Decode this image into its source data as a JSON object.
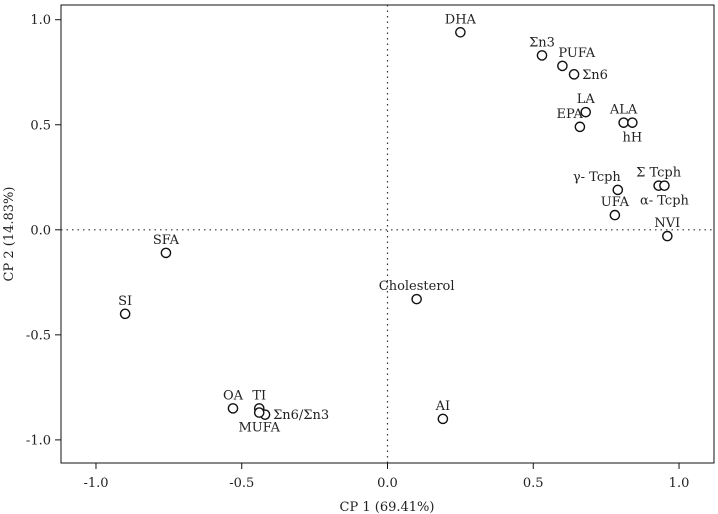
{
  "chart_data": {
    "type": "scatter",
    "xlabel": "CP 1 (69.41%)",
    "ylabel": "CP 2 (14.83%)",
    "xlim": [
      -1.12,
      1.12
    ],
    "ylim": [
      -1.11,
      1.07
    ],
    "x_ticks": [
      -1.0,
      -0.5,
      0.0,
      0.5,
      1.0
    ],
    "x_tick_labels": [
      "-1.0",
      "-0.5",
      "0.0",
      "0.5",
      "1.0"
    ],
    "y_ticks": [
      -1.0,
      -0.5,
      0.0,
      0.5,
      1.0
    ],
    "y_tick_labels": [
      "-1.0",
      "-0.5",
      "0.0",
      "0.5",
      "1.0"
    ],
    "reference_lines": {
      "x": 0,
      "y": 0,
      "style": "dotted"
    },
    "grid": false,
    "points": [
      {
        "label": "DHA",
        "x": 0.25,
        "y": 0.94,
        "label_pos": "above"
      },
      {
        "label": "Σn3",
        "x": 0.53,
        "y": 0.83,
        "label_pos": "above"
      },
      {
        "label": "PUFA",
        "x": 0.6,
        "y": 0.78,
        "label_pos": "above-right"
      },
      {
        "label": "Σn6",
        "x": 0.64,
        "y": 0.74,
        "label_pos": "right"
      },
      {
        "label": "LA",
        "x": 0.68,
        "y": 0.56,
        "label_pos": "above"
      },
      {
        "label": "ALA",
        "x": 0.81,
        "y": 0.51,
        "label_pos": "above"
      },
      {
        "label": "hH",
        "x": 0.84,
        "y": 0.51,
        "label_pos": "below"
      },
      {
        "label": "EPA",
        "x": 0.66,
        "y": 0.49,
        "label_pos": "above-left"
      },
      {
        "label": "γ- Tcph",
        "x": 0.79,
        "y": 0.19,
        "label_pos": "above-left"
      },
      {
        "label": "Σ Tcph",
        "x": 0.93,
        "y": 0.21,
        "label_pos": "above"
      },
      {
        "label": "α- Tcph",
        "x": 0.95,
        "y": 0.21,
        "label_pos": "below"
      },
      {
        "label": "UFA",
        "x": 0.78,
        "y": 0.07,
        "label_pos": "above"
      },
      {
        "label": "NVI",
        "x": 0.96,
        "y": -0.03,
        "label_pos": "above"
      },
      {
        "label": "SFA",
        "x": -0.76,
        "y": -0.11,
        "label_pos": "above"
      },
      {
        "label": "SI",
        "x": -0.9,
        "y": -0.4,
        "label_pos": "above"
      },
      {
        "label": "Cholesterol",
        "x": 0.1,
        "y": -0.33,
        "label_pos": "above"
      },
      {
        "label": "OA",
        "x": -0.53,
        "y": -0.85,
        "label_pos": "above"
      },
      {
        "label": "TI",
        "x": -0.44,
        "y": -0.85,
        "label_pos": "above"
      },
      {
        "label": "Σn6/Σn3",
        "x": -0.42,
        "y": -0.88,
        "label_pos": "right"
      },
      {
        "label": "MUFA",
        "x": -0.44,
        "y": -0.87,
        "label_pos": "below"
      },
      {
        "label": "AI",
        "x": 0.19,
        "y": -0.9,
        "label_pos": "above"
      }
    ]
  }
}
